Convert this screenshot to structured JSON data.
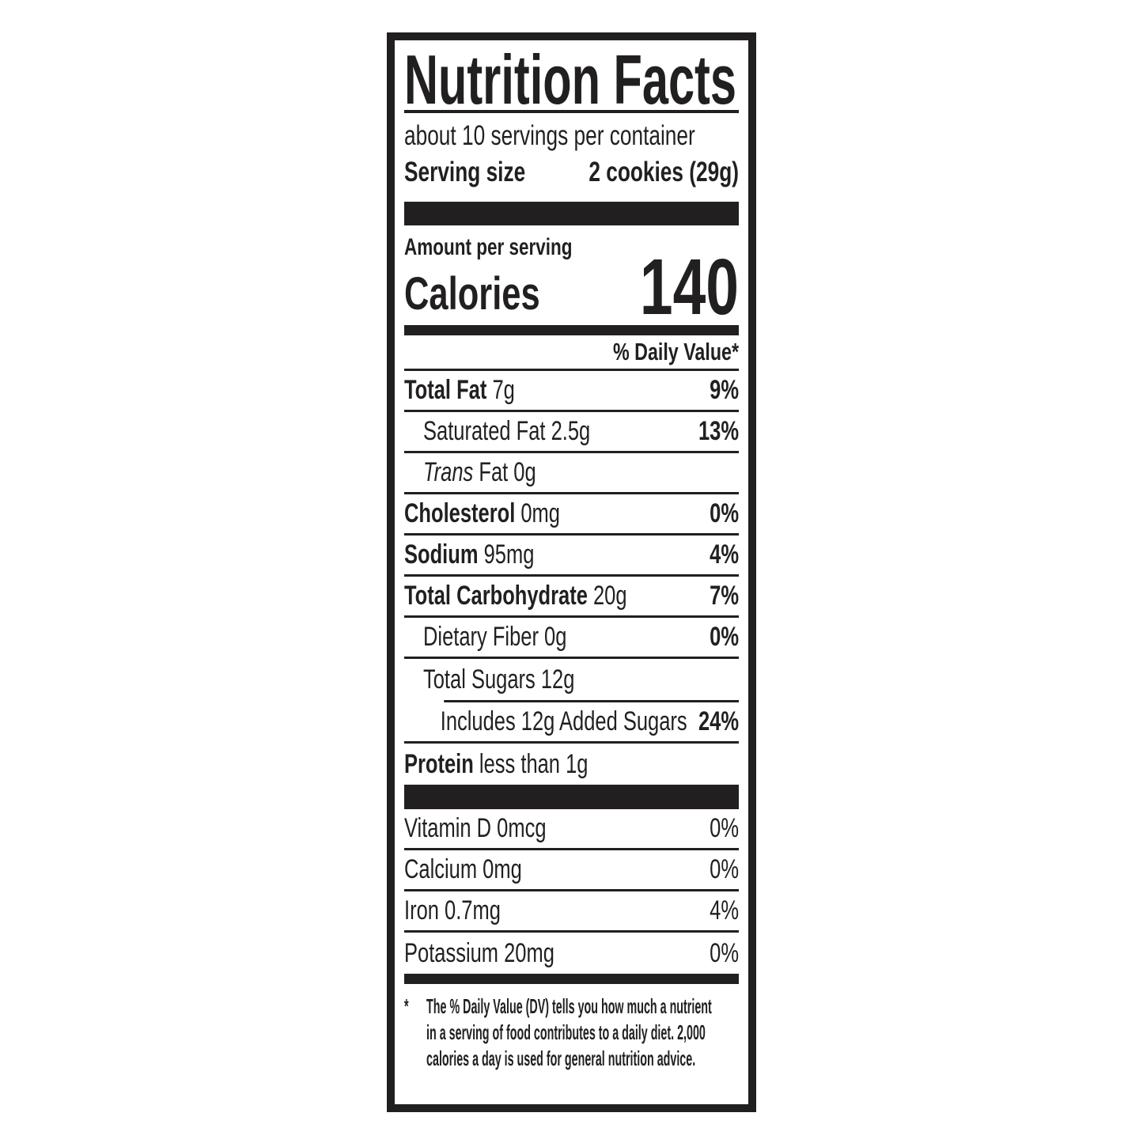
{
  "colors": {
    "ink": "#221f20",
    "background": "#ffffff"
  },
  "label": {
    "title": "Nutrition Facts",
    "servings_per_container": "about 10 servings per container",
    "serving_size": {
      "label": "Serving size",
      "value": "2 cookies (29g)"
    },
    "amount_per_serving": "Amount per serving",
    "calories": {
      "label": "Calories",
      "value": "140"
    },
    "daily_value_header": "% Daily Value*",
    "nutrients": [
      {
        "lead": "Total Fat",
        "rest": " 7g",
        "dv": "9%"
      },
      {
        "lead": "",
        "rest": "Saturated Fat 2.5g",
        "dv": "13%"
      },
      {
        "lead": "Trans",
        "rest": " Fat 0g",
        "dv": ""
      },
      {
        "lead": "Cholesterol",
        "rest": " 0mg",
        "dv": "0%"
      },
      {
        "lead": "Sodium",
        "rest": " 95mg",
        "dv": "4%"
      },
      {
        "lead": "Total Carbohydrate",
        "rest": " 20g",
        "dv": "7%"
      },
      {
        "lead": "",
        "rest": "Dietary Fiber 0g",
        "dv": "0%"
      },
      {
        "lead": "",
        "rest": "Total Sugars 12g",
        "dv": ""
      },
      {
        "lead": "",
        "rest": "Includes 12g Added Sugars",
        "dv": "24%"
      },
      {
        "lead": "Protein",
        "rest": " less than 1g",
        "dv": ""
      }
    ],
    "micronutrients": [
      {
        "name": "Vitamin D 0mcg",
        "dv": "0%"
      },
      {
        "name": "Calcium 0mg",
        "dv": "0%"
      },
      {
        "name": "Iron 0.7mg",
        "dv": "4%"
      },
      {
        "name": "Potassium 20mg",
        "dv": "0%"
      }
    ],
    "footnote": {
      "marker": "*",
      "lines": [
        "The % Daily Value (DV) tells you how much a nutrient",
        "in a serving of food contributes to a daily diet. 2,000",
        "calories a day is used for general nutrition advice."
      ]
    }
  }
}
